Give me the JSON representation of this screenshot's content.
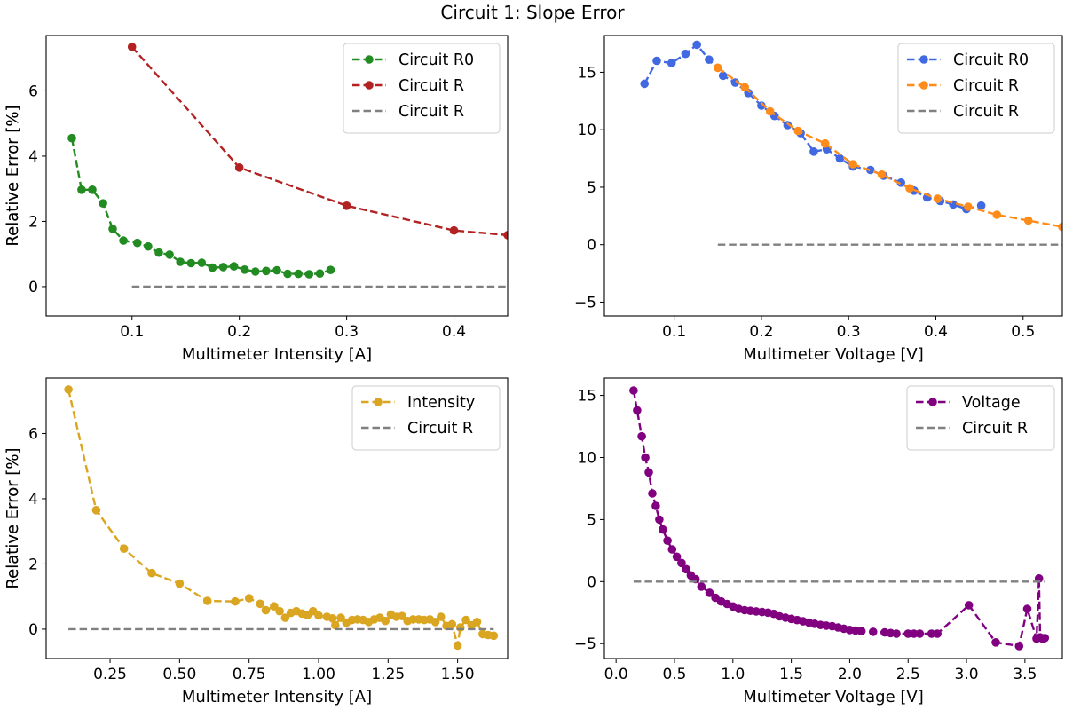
{
  "figure": {
    "title": "Circuit 1: Slope Error"
  },
  "chart_data": [
    {
      "type": "line",
      "xlabel": "Multimeter Intensity [A]",
      "ylabel": "Relative Error [%]",
      "xlim": [
        0.02,
        0.45
      ],
      "ylim": [
        -0.9,
        7.7
      ],
      "xticks": [
        0.1,
        0.2,
        0.3,
        0.4
      ],
      "xticklabels": [
        "0.1",
        "0.2",
        "0.3",
        "0.4"
      ],
      "yticks": [
        0,
        2,
        4,
        6
      ],
      "yticklabels": [
        "0",
        "2",
        "4",
        "6"
      ],
      "legend_position": "top-right",
      "series": [
        {
          "name": "Circuit R0",
          "color": "#228b22",
          "style": "dashed-marker",
          "x": [
            0.044,
            0.053,
            0.063,
            0.073,
            0.082,
            0.092,
            0.105,
            0.115,
            0.125,
            0.135,
            0.145,
            0.155,
            0.165,
            0.175,
            0.185,
            0.195,
            0.205,
            0.215,
            0.225,
            0.235,
            0.245,
            0.255,
            0.265,
            0.275,
            0.285
          ],
          "y": [
            4.55,
            2.97,
            2.97,
            2.55,
            1.77,
            1.41,
            1.34,
            1.23,
            1.04,
            0.98,
            0.76,
            0.72,
            0.73,
            0.58,
            0.6,
            0.62,
            0.52,
            0.46,
            0.48,
            0.5,
            0.39,
            0.39,
            0.38,
            0.4,
            0.51
          ]
        },
        {
          "name": "Circuit R",
          "color": "#b22222",
          "style": "dashed-marker",
          "x": [
            0.1,
            0.2,
            0.3,
            0.4,
            0.45
          ],
          "y": [
            7.35,
            3.65,
            2.48,
            1.72,
            1.58
          ]
        },
        {
          "name": "Circuit R",
          "color": "#808080",
          "style": "dashed",
          "x": [
            0.1,
            0.45
          ],
          "y": [
            0,
            0
          ]
        }
      ]
    },
    {
      "type": "line",
      "xlabel": "Multimeter Voltage [V]",
      "ylabel": "Relative Error [%]",
      "xlim": [
        0.02,
        0.545
      ],
      "ylim": [
        -6.2,
        18.2
      ],
      "xticks": [
        0.1,
        0.2,
        0.3,
        0.4,
        0.5
      ],
      "xticklabels": [
        "0.1",
        "0.2",
        "0.3",
        "0.4",
        "0.5"
      ],
      "yticks": [
        -5,
        0,
        5,
        10,
        15
      ],
      "yticklabels": [
        "−5",
        "0",
        "5",
        "10",
        "15"
      ],
      "legend_position": "top-right",
      "series": [
        {
          "name": "Circuit R0",
          "color": "#4169e1",
          "style": "dashed-marker",
          "x": [
            0.066,
            0.08,
            0.097,
            0.113,
            0.126,
            0.14,
            0.156,
            0.17,
            0.185,
            0.2,
            0.215,
            0.23,
            0.245,
            0.26,
            0.275,
            0.29,
            0.305,
            0.325,
            0.34,
            0.36,
            0.375,
            0.39,
            0.405,
            0.42,
            0.435,
            0.452
          ],
          "y": [
            14.0,
            16.0,
            15.8,
            16.6,
            17.4,
            16.1,
            14.7,
            14.1,
            13.2,
            12.1,
            11.2,
            10.4,
            9.7,
            8.1,
            8.3,
            7.5,
            6.8,
            6.5,
            6.0,
            5.4,
            4.7,
            4.1,
            3.8,
            3.5,
            3.1,
            3.4
          ]
        },
        {
          "name": "Circuit R",
          "color": "#ff8c1a",
          "style": "dashed-marker",
          "x": [
            0.15,
            0.181,
            0.21,
            0.242,
            0.273,
            0.305,
            0.338,
            0.37,
            0.402,
            0.437,
            0.47,
            0.506,
            0.545
          ],
          "y": [
            15.4,
            13.7,
            11.6,
            9.9,
            8.8,
            7.0,
            6.1,
            4.9,
            4.0,
            3.3,
            2.6,
            2.1,
            1.55
          ]
        },
        {
          "name": "Circuit R",
          "color": "#808080",
          "style": "dashed",
          "x": [
            0.15,
            0.545
          ],
          "y": [
            0,
            0
          ]
        }
      ]
    },
    {
      "type": "line",
      "xlabel": "Multimeter Intensity [A]",
      "ylabel": "Relative Error [%]",
      "xlim": [
        0.02,
        1.68
      ],
      "ylim": [
        -0.9,
        7.7
      ],
      "xticks": [
        0.25,
        0.5,
        0.75,
        1.0,
        1.25,
        1.5
      ],
      "xticklabels": [
        "0.25",
        "0.50",
        "0.75",
        "1.00",
        "1.25",
        "1.50"
      ],
      "yticks": [
        0,
        2,
        4,
        6
      ],
      "yticklabels": [
        "0",
        "2",
        "4",
        "6"
      ],
      "legend_position": "top-right",
      "series": [
        {
          "name": "Intensity",
          "color": "#daa520",
          "style": "dashed-marker",
          "x": [
            0.1,
            0.2,
            0.3,
            0.4,
            0.5,
            0.6,
            0.7,
            0.75,
            0.79,
            0.81,
            0.84,
            0.86,
            0.88,
            0.9,
            0.92,
            0.94,
            0.96,
            0.98,
            1.0,
            1.03,
            1.05,
            1.06,
            1.08,
            1.1,
            1.12,
            1.14,
            1.16,
            1.18,
            1.2,
            1.22,
            1.24,
            1.26,
            1.28,
            1.3,
            1.32,
            1.34,
            1.36,
            1.38,
            1.4,
            1.42,
            1.44,
            1.46,
            1.48,
            1.5,
            1.51,
            1.53,
            1.55,
            1.57,
            1.59,
            1.61,
            1.63
          ],
          "y": [
            7.35,
            3.65,
            2.47,
            1.72,
            1.4,
            0.87,
            0.85,
            0.95,
            0.78,
            0.58,
            0.7,
            0.55,
            0.35,
            0.5,
            0.55,
            0.48,
            0.43,
            0.55,
            0.42,
            0.38,
            0.33,
            0.12,
            0.35,
            0.2,
            0.28,
            0.3,
            0.28,
            0.22,
            0.3,
            0.35,
            0.25,
            0.45,
            0.38,
            0.4,
            0.25,
            0.3,
            0.3,
            0.28,
            0.3,
            0.22,
            0.38,
            0.1,
            0.15,
            -0.5,
            0.05,
            0.28,
            0.12,
            0.22,
            -0.15,
            -0.18,
            -0.2
          ]
        },
        {
          "name": "Circuit R",
          "color": "#808080",
          "style": "dashed",
          "x": [
            0.1,
            1.63
          ],
          "y": [
            0,
            0
          ]
        }
      ]
    },
    {
      "type": "line",
      "xlabel": "Multimeter Voltage [V]",
      "ylabel": "Relative Error [%]",
      "xlim": [
        -0.1,
        3.82
      ],
      "ylim": [
        -6.2,
        16.4
      ],
      "xticks": [
        0.0,
        0.5,
        1.0,
        1.5,
        2.0,
        2.5,
        3.0,
        3.5
      ],
      "xticklabels": [
        "0.0",
        "0.5",
        "1.0",
        "1.5",
        "2.0",
        "2.5",
        "3.0",
        "3.5"
      ],
      "yticks": [
        -5,
        0,
        5,
        10,
        15
      ],
      "yticklabels": [
        "−5",
        "0",
        "5",
        "10",
        "15"
      ],
      "legend_position": "top-right",
      "series": [
        {
          "name": "Voltage",
          "color": "#800080",
          "style": "dashed-marker",
          "x": [
            0.15,
            0.18,
            0.22,
            0.25,
            0.28,
            0.31,
            0.34,
            0.37,
            0.4,
            0.44,
            0.48,
            0.52,
            0.56,
            0.6,
            0.64,
            0.68,
            0.73,
            0.8,
            0.85,
            0.9,
            0.95,
            1.0,
            1.05,
            1.1,
            1.15,
            1.2,
            1.25,
            1.3,
            1.35,
            1.4,
            1.45,
            1.5,
            1.55,
            1.6,
            1.65,
            1.7,
            1.75,
            1.8,
            1.85,
            1.9,
            1.95,
            2.0,
            2.05,
            2.1,
            2.2,
            2.3,
            2.35,
            2.4,
            2.5,
            2.55,
            2.6,
            2.7,
            2.75,
            3.02,
            3.25,
            3.45,
            3.52,
            3.6,
            3.62,
            3.63,
            3.65,
            3.67
          ],
          "y": [
            15.4,
            13.8,
            11.7,
            10.0,
            8.8,
            7.1,
            6.1,
            5.0,
            4.2,
            3.3,
            2.6,
            2.0,
            1.5,
            1.0,
            0.5,
            0.2,
            -0.4,
            -0.9,
            -1.3,
            -1.6,
            -1.8,
            -2.0,
            -2.2,
            -2.3,
            -2.35,
            -2.4,
            -2.45,
            -2.5,
            -2.6,
            -2.8,
            -2.9,
            -3.0,
            -3.1,
            -3.2,
            -3.3,
            -3.4,
            -3.5,
            -3.55,
            -3.6,
            -3.7,
            -3.8,
            -3.9,
            -3.95,
            -4.0,
            -4.05,
            -4.1,
            -4.15,
            -4.2,
            -4.2,
            -4.2,
            -4.2,
            -4.2,
            -4.2,
            -1.9,
            -4.9,
            -5.2,
            -2.2,
            -4.6,
            0.25,
            -4.5,
            -4.6,
            -4.55
          ]
        },
        {
          "name": "Circuit R",
          "color": "#808080",
          "style": "dashed",
          "x": [
            0.15,
            3.67
          ],
          "y": [
            0,
            0
          ]
        }
      ]
    }
  ]
}
